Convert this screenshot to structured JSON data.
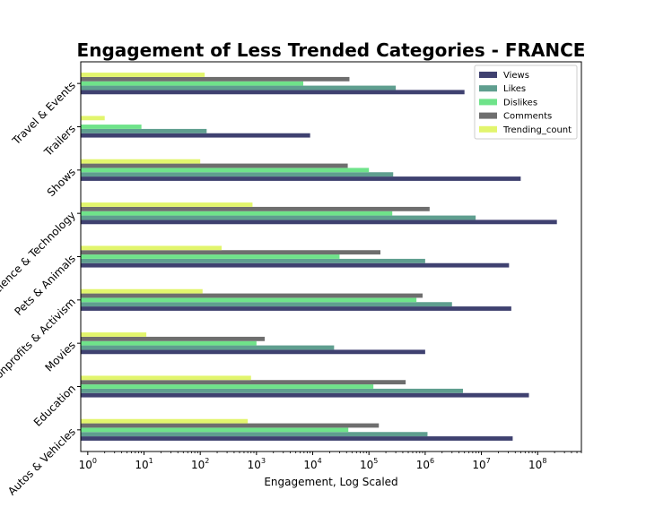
{
  "chart_data": {
    "type": "bar",
    "orientation": "horizontal",
    "title": "Engagement of Less Trended Categories - FRANCE",
    "xlabel": "Engagement, Log Scaled",
    "ylabel": "",
    "x_scale": "log",
    "xlim": [
      0.75,
      600000000
    ],
    "x_ticks": [
      {
        "value": 1,
        "base": "10",
        "exp": "0"
      },
      {
        "value": 10,
        "base": "10",
        "exp": "1"
      },
      {
        "value": 100,
        "base": "10",
        "exp": "2"
      },
      {
        "value": 1000,
        "base": "10",
        "exp": "3"
      },
      {
        "value": 10000,
        "base": "10",
        "exp": "4"
      },
      {
        "value": 100000,
        "base": "10",
        "exp": "5"
      },
      {
        "value": 1000000,
        "base": "10",
        "exp": "6"
      },
      {
        "value": 10000000,
        "base": "10",
        "exp": "7"
      },
      {
        "value": 100000000,
        "base": "10",
        "exp": "8"
      }
    ],
    "grid": false,
    "legend_position": "top-right",
    "categories": [
      "Autos & Vehicles",
      "Education",
      "Movies",
      "Nonprofits & Activism",
      "Pets & Animals",
      "Science & Technology",
      "Shows",
      "Trailers",
      "Travel & Events"
    ],
    "series": [
      {
        "name": "Views",
        "color": "#3f4170",
        "values": [
          36000000,
          70000000,
          1000000,
          34000000,
          31000000,
          220000000,
          50000000,
          9000,
          5000000
        ]
      },
      {
        "name": "Likes",
        "color": "#5f9e8f",
        "values": [
          1100000,
          4700000,
          24000,
          3000000,
          1000000,
          7900000,
          270000,
          130,
          300000
        ]
      },
      {
        "name": "Dislikes",
        "color": "#6fe38a",
        "values": [
          43000,
          120000,
          1000,
          700000,
          30000,
          260000,
          100000,
          9,
          6800
        ]
      },
      {
        "name": "Comments",
        "color": "#6e6e6e",
        "values": [
          150000,
          450000,
          1400,
          900000,
          160000,
          1200000,
          42000,
          0,
          45000
        ]
      },
      {
        "name": "Trending_count",
        "color": "#e2f56d",
        "values": [
          700,
          800,
          11,
          110,
          240,
          850,
          100,
          2,
          120
        ]
      }
    ]
  }
}
